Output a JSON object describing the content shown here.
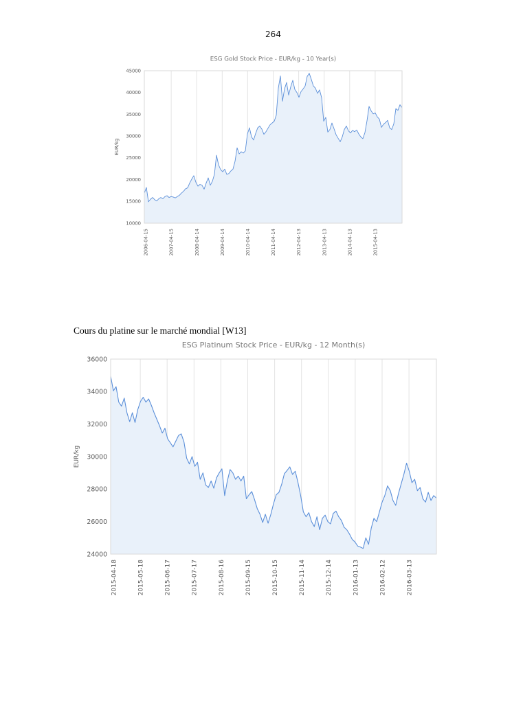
{
  "page": {
    "number": "264"
  },
  "caption": "Cours du platine sur le marché mondial [W13]",
  "chart_data": [
    {
      "type": "area",
      "title": "ESG Gold Stock Price - EUR/kg - 10 Year(s)",
      "ylabel": "EUR/kg",
      "xlabel": "",
      "ylim": [
        10000,
        45000
      ],
      "grid": "vertical-only",
      "legend": "none",
      "line_color": "#5b8fd9",
      "fill_color": "#e9f1fa",
      "y_tick_labels": [
        "45000",
        "40000",
        "35000",
        "30000",
        "25000",
        "20000",
        "15000",
        "10000"
      ],
      "x_tick_labels": [
        "2006-04-15",
        "2007-04-15",
        "2008-04-14",
        "2009-04-14",
        "2010-04-14",
        "2011-04-14",
        "2012-04-13",
        "2013-04-13",
        "2014-04-13",
        "2015-04-13"
      ],
      "values": [
        16900,
        18200,
        14900,
        15500,
        15900,
        15400,
        15100,
        15600,
        15900,
        15600,
        16100,
        16300,
        15900,
        16100,
        16000,
        15800,
        16100,
        16400,
        16900,
        17300,
        17900,
        18100,
        19200,
        20100,
        20900,
        19400,
        18500,
        18900,
        18700,
        17800,
        19200,
        20400,
        18700,
        19600,
        21200,
        25600,
        23400,
        22300,
        21800,
        22400,
        21200,
        21400,
        22000,
        22400,
        24200,
        27300,
        25900,
        26400,
        26100,
        26600,
        30500,
        31900,
        29800,
        29100,
        30600,
        31900,
        32300,
        31600,
        30400,
        31000,
        31800,
        32600,
        33000,
        33400,
        34800,
        41000,
        43800,
        38000,
        40800,
        42300,
        39400,
        41300,
        42800,
        40700,
        40000,
        38900,
        40200,
        40800,
        41500,
        43700,
        44400,
        43000,
        41500,
        41000,
        39800,
        40600,
        38800,
        33400,
        34300,
        30900,
        31500,
        33000,
        31700,
        30300,
        29500,
        28700,
        29800,
        31500,
        32300,
        31200,
        30700,
        31300,
        31000,
        31400,
        30500,
        29800,
        29400,
        30800,
        33500,
        36800,
        35800,
        35100,
        35300,
        34400,
        33900,
        32000,
        32700,
        33100,
        33600,
        31900,
        31500,
        32800,
        36300,
        35900,
        37200,
        36500
      ]
    },
    {
      "type": "area",
      "title": "ESG Platinum Stock Price - EUR/kg - 12 Month(s)",
      "ylabel": "EUR/kg",
      "xlabel": "",
      "ylim": [
        24000,
        36000
      ],
      "grid": "vertical-only",
      "legend": "none",
      "line_color": "#5b8fd9",
      "fill_color": "#e9f1fa",
      "y_tick_labels": [
        "36000",
        "34000",
        "32000",
        "30000",
        "28000",
        "26000",
        "24000"
      ],
      "x_tick_labels": [
        "2015-04-18",
        "2015-05-18",
        "2015-06-17",
        "2015-07-17",
        "2015-08-16",
        "2015-09-15",
        "2015-10-15",
        "2015-11-14",
        "2015-12-14",
        "2016-01-13",
        "2016-02-12",
        "2016-03-13"
      ],
      "values": [
        34950,
        34050,
        34300,
        33350,
        33100,
        33600,
        32700,
        32150,
        32700,
        32100,
        32900,
        33400,
        33650,
        33350,
        33550,
        33150,
        32700,
        32300,
        31900,
        31450,
        31750,
        31100,
        30850,
        30600,
        30950,
        31300,
        31400,
        30900,
        29900,
        29550,
        30000,
        29400,
        29650,
        28600,
        29000,
        28250,
        28100,
        28500,
        28050,
        28700,
        29000,
        29250,
        27600,
        28500,
        29200,
        29000,
        28600,
        28800,
        28500,
        28800,
        27400,
        27650,
        27850,
        27350,
        26800,
        26450,
        25950,
        26450,
        25900,
        26450,
        27100,
        27650,
        27800,
        28300,
        28950,
        29150,
        29370,
        28900,
        29100,
        28400,
        27600,
        26600,
        26300,
        26550,
        26000,
        25700,
        26300,
        25500,
        26200,
        26400,
        26000,
        25860,
        26500,
        26650,
        26300,
        26070,
        25650,
        25500,
        25230,
        24900,
        24750,
        24500,
        24430,
        24350,
        25000,
        24600,
        25600,
        26200,
        26000,
        26600,
        27200,
        27600,
        28200,
        27900,
        27300,
        27000,
        27700,
        28300,
        28900,
        29600,
        29100,
        28400,
        28600,
        27900,
        28100,
        27400,
        27200,
        27800,
        27300,
        27600,
        27450
      ]
    }
  ]
}
